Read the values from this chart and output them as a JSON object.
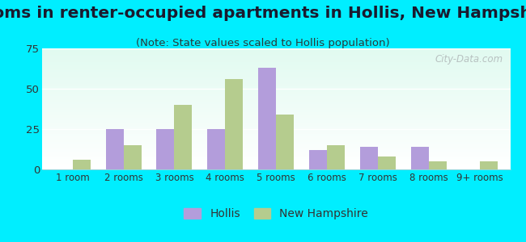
{
  "title": "Rooms in renter-occupied apartments in Hollis, New Hampshire",
  "subtitle": "(Note: State values scaled to Hollis population)",
  "categories": [
    "1 room",
    "2 rooms",
    "3 rooms",
    "4 rooms",
    "5 rooms",
    "6 rooms",
    "7 rooms",
    "8 rooms",
    "9+ rooms"
  ],
  "hollis_values": [
    0,
    25,
    25,
    25,
    63,
    12,
    14,
    14,
    0
  ],
  "nh_values": [
    6,
    15,
    40,
    56,
    34,
    15,
    8,
    5,
    5
  ],
  "hollis_color": "#b39ddb",
  "nh_color": "#b5cc8e",
  "background_outer": "#00eeff",
  "ylim": [
    0,
    75
  ],
  "yticks": [
    0,
    25,
    50,
    75
  ],
  "bar_width": 0.35,
  "title_fontsize": 14.5,
  "subtitle_fontsize": 9.5,
  "tick_fontsize": 8.5,
  "legend_fontsize": 10,
  "watermark": "City-Data.com"
}
